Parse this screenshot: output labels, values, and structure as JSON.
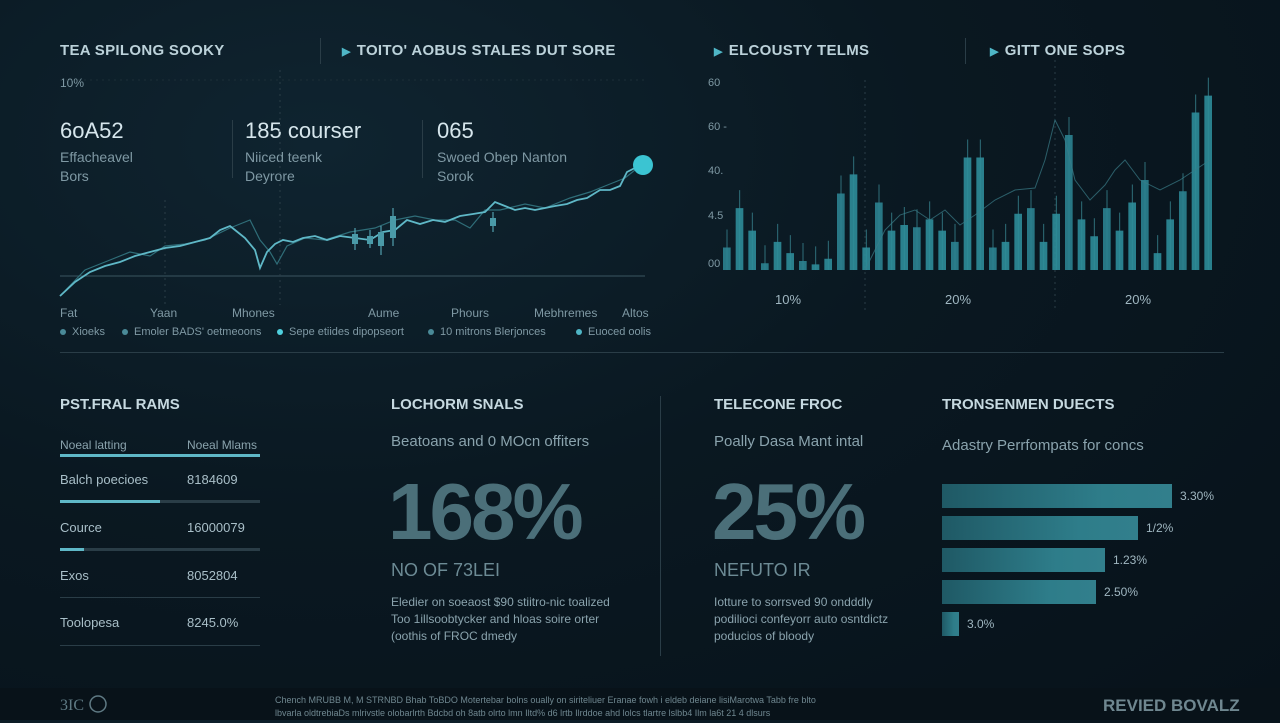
{
  "colors": {
    "accent": "#4fb6c6",
    "line": "#5fb8c7",
    "bar_teal": "#2d8c99",
    "bg": "#0a1821"
  },
  "header": {
    "left_title": "TEA SPILONG SOOKY",
    "center_title": "TOITO' AOBUS STALES DUT SORE",
    "right_title_1": "ELCOUSTY TELMS",
    "right_title_2": "GITT ONE SOPS"
  },
  "top_left": {
    "y_top_label": "10%",
    "kpis": [
      {
        "value": "6oA52",
        "line1": "Effacheavel",
        "line2": "Bors"
      },
      {
        "value": "185 courser",
        "line1": "Niiced teenk",
        "line2": "Deyrore"
      },
      {
        "value": "065",
        "line1": "Swoed Obep Nanton",
        "line2": "Sorok"
      }
    ],
    "x_labels": [
      "Fat",
      "Yaan",
      "Mhones",
      "Aume",
      "Phours",
      "Mebhremes",
      "Altos"
    ],
    "legend": [
      "Xioeks",
      "Emoler BADS' oetmeoons",
      "Sepe etiides dipopseort",
      "10 mitrons Blerjonces",
      "Euoced oolis"
    ]
  },
  "chart_data": {
    "type": "bar",
    "y_ticks": [
      "60",
      "60 -",
      "40.",
      "4.5",
      "00"
    ],
    "pct_labels": [
      "10%",
      "20%",
      "20%"
    ],
    "values": [
      20,
      55,
      35,
      6,
      25,
      15,
      8,
      5,
      10,
      68,
      85,
      20,
      60,
      35,
      40,
      38,
      45,
      35,
      25,
      100,
      100,
      20,
      25,
      50,
      55,
      25,
      50,
      120,
      45,
      30,
      55,
      35,
      60,
      80,
      15,
      45,
      70,
      140,
      155
    ]
  },
  "bottom": {
    "col1": {
      "title": "PST.FRAL RAMS",
      "head_left": "Noeal latting",
      "head_right": "Noeal Mlams",
      "rows": [
        {
          "label": "Balch poecioes",
          "value": "8184609",
          "fill": 0.5
        },
        {
          "label": "Cource",
          "value": "16000079",
          "fill": 0.12
        },
        {
          "label": "Exos",
          "value": "8052804",
          "fill": 0
        },
        {
          "label": "Toolopesa",
          "value": "8245.0%",
          "fill": 0
        }
      ]
    },
    "col2": {
      "title": "LOCHORM SNALS",
      "subtitle": "Beatoans and 0 MOcn offiters",
      "big": "168%",
      "caps": "NO OF 73LEI",
      "desc": [
        "Eledier on soeaost $90 stiitro-nic toalized",
        "Too 1illsoobtycker and hloas soire orter",
        "(oothis of FROC dmedy"
      ]
    },
    "col3": {
      "title": "TELECONE FROC",
      "subtitle": "Poally Dasa Mant intal",
      "big": "25%",
      "caps": "NEFUTO IR",
      "desc": [
        "Iotture to sorrsved 90 ondddly",
        "podilioci confeyorr auto osntdictz",
        "poducios of bloody"
      ]
    },
    "col4": {
      "title": "TRONSENMEN DUECTS",
      "subtitle": "Adastry Perrfompats for concs",
      "bars": [
        {
          "label": "3.30%",
          "value": 0.82
        },
        {
          "label": "1/2%",
          "value": 0.7
        },
        {
          "label": "1.23%",
          "value": 0.58
        },
        {
          "label": "2.50%",
          "value": 0.55
        },
        {
          "label": "3.0%",
          "value": 0.06
        }
      ]
    }
  },
  "footer": {
    "text_line1": "Chench MRUBB M, M STRNBD Bhab ToBDO Motertebar bolns oually on siriteliuer Eranae fowh i eldeb deiane lisiMarotwa Tabb fre blto",
    "text_line2": "lbvarla oldtrebiaDs mlrivstle olobarlrth Bdcbd oh 8atb olrto lmn Iltd% d6 lrtb  Ilrddoe ahd lolcs tlartre lslbb4 Ilm la6t 21 4 dlsurs",
    "brand": "REVIED BOVALZ",
    "logo_text": "3IC"
  }
}
